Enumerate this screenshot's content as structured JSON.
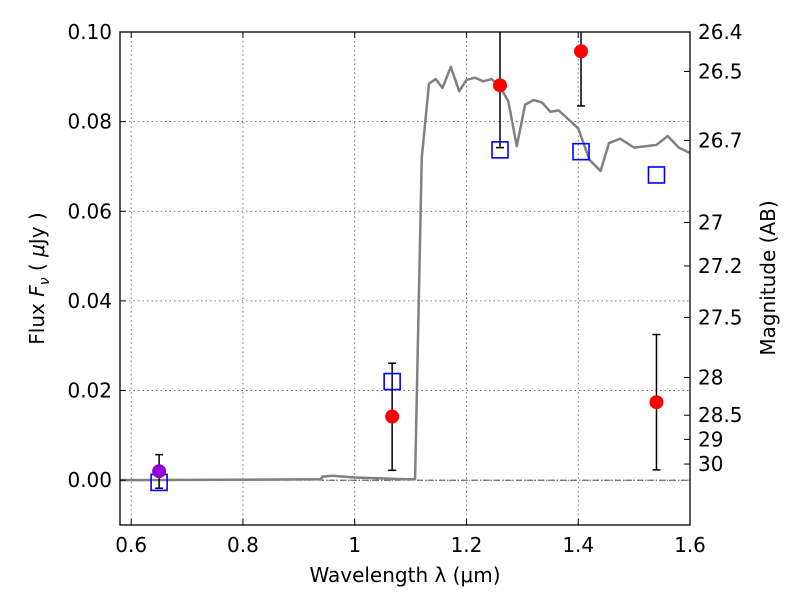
{
  "chart_data": {
    "type": "scatter",
    "title": "",
    "xlabel": "Wavelength  λ (μm)",
    "ylabel": "Flux  F_ν ( μJy )",
    "ylabel_parts": {
      "pre": "Flux  ",
      "var": "F",
      "sub": "ν",
      "mid": "  (  ",
      "mu": "μ",
      "post": "Jy )"
    },
    "y2label": "Magnitude (AB)",
    "xlim": [
      0.58,
      1.6
    ],
    "ylim": [
      -0.01,
      0.1
    ],
    "grid": true,
    "x_ticks": [
      0.6,
      0.8,
      1.0,
      1.2,
      1.4,
      1.6
    ],
    "x_tick_labels": [
      "0.6",
      "0.8",
      "1",
      "1.2",
      "1.4",
      "1.6"
    ],
    "y_ticks": [
      0.0,
      0.02,
      0.04,
      0.06,
      0.08,
      0.1
    ],
    "y_tick_labels": [
      "0.00",
      "0.02",
      "0.04",
      "0.06",
      "0.08",
      "0.10"
    ],
    "y2_ticks": [
      {
        "label": "26.4",
        "flux": 0.1
      },
      {
        "label": "26.5",
        "flux": 0.0912
      },
      {
        "label": "26.7",
        "flux": 0.0758
      },
      {
        "label": "27",
        "flux": 0.0575
      },
      {
        "label": "27.2",
        "flux": 0.0478
      },
      {
        "label": "27.5",
        "flux": 0.0363
      },
      {
        "label": "28",
        "flux": 0.0229
      },
      {
        "label": "28.5",
        "flux": 0.0145
      },
      {
        "label": "29",
        "flux": 0.0091
      },
      {
        "label": "30",
        "flux": 0.0036
      }
    ],
    "series": [
      {
        "role": "model-sed",
        "kind": "line",
        "color": "#808080",
        "x": [
          0.58,
          0.94,
          0.942,
          0.96,
          0.98,
          1.0,
          1.05,
          1.09,
          1.108,
          1.12,
          1.133,
          1.145,
          1.157,
          1.172,
          1.187,
          1.2,
          1.215,
          1.23,
          1.245,
          1.26,
          1.275,
          1.29,
          1.305,
          1.32,
          1.335,
          1.35,
          1.365,
          1.38,
          1.4,
          1.42,
          1.44,
          1.455,
          1.475,
          1.5,
          1.52,
          1.54,
          1.56,
          1.58,
          1.6
        ],
        "y": [
          0.0,
          0.0002,
          0.0008,
          0.001,
          0.0008,
          0.0006,
          0.0004,
          0.0002,
          0.0002,
          0.072,
          0.0885,
          0.0895,
          0.0875,
          0.0922,
          0.0868,
          0.0893,
          0.0898,
          0.089,
          0.0895,
          0.0878,
          0.0845,
          0.0745,
          0.0838,
          0.0848,
          0.0843,
          0.0822,
          0.0825,
          0.0808,
          0.0785,
          0.0715,
          0.069,
          0.0752,
          0.0762,
          0.0742,
          0.0745,
          0.0748,
          0.0768,
          0.0742,
          0.073
        ]
      },
      {
        "role": "model-photometry",
        "kind": "open-square",
        "color": "#0000ff",
        "x": [
          0.65,
          1.067,
          1.26,
          1.405,
          1.54
        ],
        "y": [
          -0.0005,
          0.022,
          0.0737,
          0.0733,
          0.0681
        ]
      },
      {
        "role": "observed",
        "kind": "filled-circle",
        "color": "#ff0000",
        "x": [
          1.067,
          1.26,
          1.405,
          1.54
        ],
        "y": [
          0.0142,
          0.0881,
          0.0957,
          0.0174
        ],
        "yerr_low": [
          0.0022,
          0.0742,
          0.0835,
          0.0023
        ],
        "yerr_high": [
          0.0261,
          0.1015,
          0.1002,
          0.0325
        ]
      },
      {
        "role": "observed-limit",
        "kind": "filled-circle",
        "color": "#9400d3",
        "x": [
          0.65
        ],
        "y": [
          0.002
        ],
        "yerr_low": [
          -0.0018
        ],
        "yerr_high": [
          0.0057
        ]
      }
    ]
  }
}
